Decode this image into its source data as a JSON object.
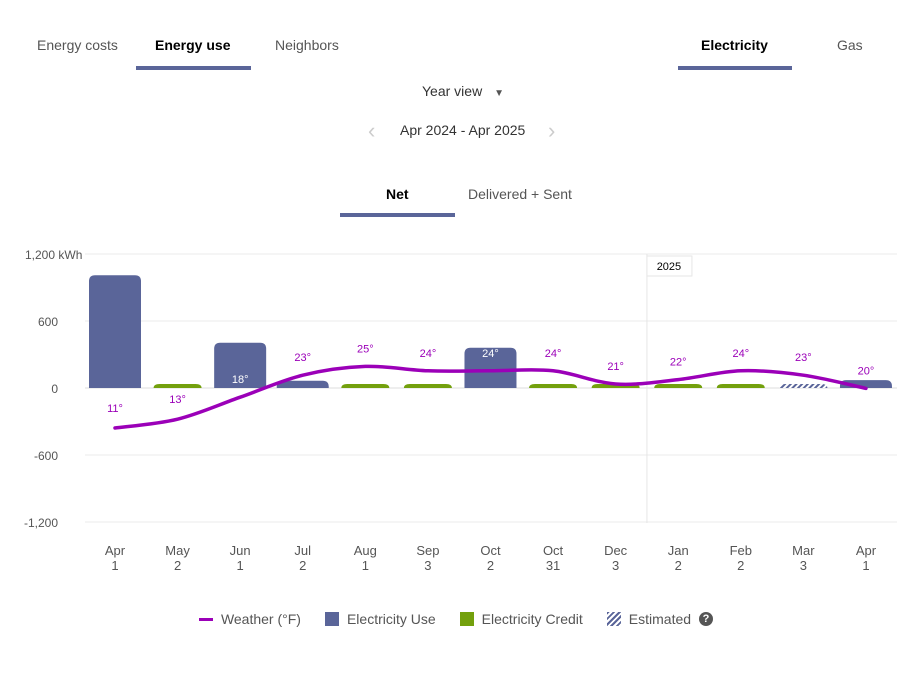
{
  "tabs": [
    {
      "label": "Energy costs"
    },
    {
      "label": "Energy use"
    },
    {
      "label": "Neighbors"
    }
  ],
  "fuel_tabs": [
    {
      "label": "Electricity"
    },
    {
      "label": "Gas"
    }
  ],
  "view_select": {
    "label": "Year view"
  },
  "date_range": "Apr 2024 - Apr 2025",
  "mode_tabs": [
    {
      "label": "Net"
    },
    {
      "label": "Delivered + Sent"
    }
  ],
  "colors": {
    "use": "#5a6599",
    "credit": "#73a00d",
    "weather": "#9b00b8",
    "accent": "#5a6599"
  },
  "chart_data": {
    "type": "bar",
    "ylabel": "kWh",
    "ylim": [
      -1200,
      1200
    ],
    "yticks": [
      "1,200 kWh",
      "600",
      "0",
      "-600",
      "-1,200"
    ],
    "ytick_values": [
      1200,
      600,
      0,
      -600,
      -1200
    ],
    "year_marker": "2025",
    "categories": [
      [
        "Apr",
        "1"
      ],
      [
        "May",
        "2"
      ],
      [
        "Jun",
        "1"
      ],
      [
        "Jul",
        "2"
      ],
      [
        "Aug",
        "1"
      ],
      [
        "Sep",
        "3"
      ],
      [
        "Oct",
        "2"
      ],
      [
        "Oct",
        "31"
      ],
      [
        "Dec",
        "3"
      ],
      [
        "Jan",
        "2"
      ],
      [
        "Feb",
        "2"
      ],
      [
        "Mar",
        "3"
      ],
      [
        "Apr",
        "1"
      ]
    ],
    "series": [
      {
        "name": "Electricity Use / Credit",
        "values": [
          1010,
          30,
          405,
          65,
          30,
          30,
          360,
          30,
          25,
          30,
          30,
          25,
          70
        ],
        "kinds": [
          "use",
          "credit",
          "use",
          "use",
          "credit",
          "credit",
          "use",
          "credit",
          "credit",
          "credit",
          "credit",
          "estimated",
          "use"
        ]
      },
      {
        "name": "Weather (°F)",
        "values": [
          11,
          13,
          18,
          23,
          25,
          24,
          24,
          24,
          21,
          22,
          24,
          23,
          20
        ]
      }
    ],
    "temp_labels": [
      "11°",
      "13°",
      "18°",
      "23°",
      "25°",
      "24°",
      "24°",
      "24°",
      "21°",
      "22°",
      "24°",
      "23°",
      "20°"
    ],
    "legend": [
      {
        "label": "Weather (°F)"
      },
      {
        "label": "Electricity Use"
      },
      {
        "label": "Electricity Credit"
      },
      {
        "label": "Estimated"
      }
    ],
    "legend_position": "bottom"
  }
}
